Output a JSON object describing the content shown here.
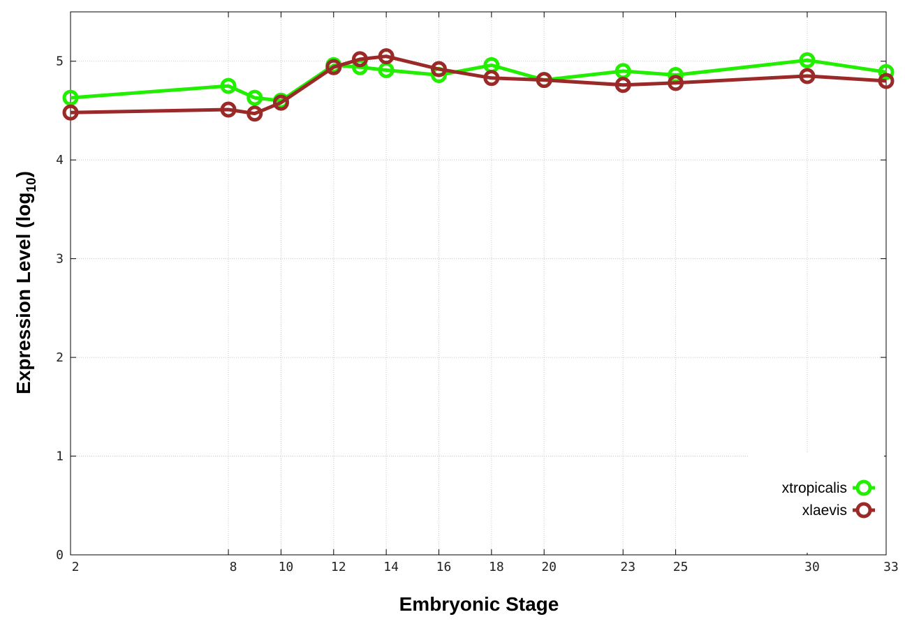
{
  "chart_data": {
    "type": "line",
    "xlabel": "Embryonic Stage",
    "ylabel_main": "Expression Level (log",
    "ylabel_sub": "10",
    "ylabel_close": ")",
    "x": [
      2,
      8,
      9,
      10,
      12,
      13,
      14,
      16,
      18,
      20,
      23,
      25,
      30,
      33
    ],
    "x_ticks": [
      2,
      8,
      10,
      12,
      14,
      16,
      18,
      20,
      23,
      25,
      30,
      33
    ],
    "y_ticks": [
      0,
      1,
      2,
      3,
      4,
      5
    ],
    "xlim": [
      2,
      33
    ],
    "ylim": [
      0,
      5.5
    ],
    "grid": true,
    "legend_position": "bottom-right",
    "series": [
      {
        "name": "xtropicalis",
        "color": "#22ee00",
        "values": [
          4.63,
          4.75,
          4.63,
          4.6,
          4.96,
          4.94,
          4.91,
          4.86,
          4.96,
          4.81,
          4.9,
          4.86,
          5.01,
          4.89
        ]
      },
      {
        "name": "xlaevis",
        "color": "#9a2a28",
        "values": [
          4.48,
          4.51,
          4.47,
          4.58,
          4.94,
          5.02,
          5.05,
          4.92,
          4.83,
          4.81,
          4.76,
          4.78,
          4.85,
          4.8
        ]
      }
    ]
  }
}
